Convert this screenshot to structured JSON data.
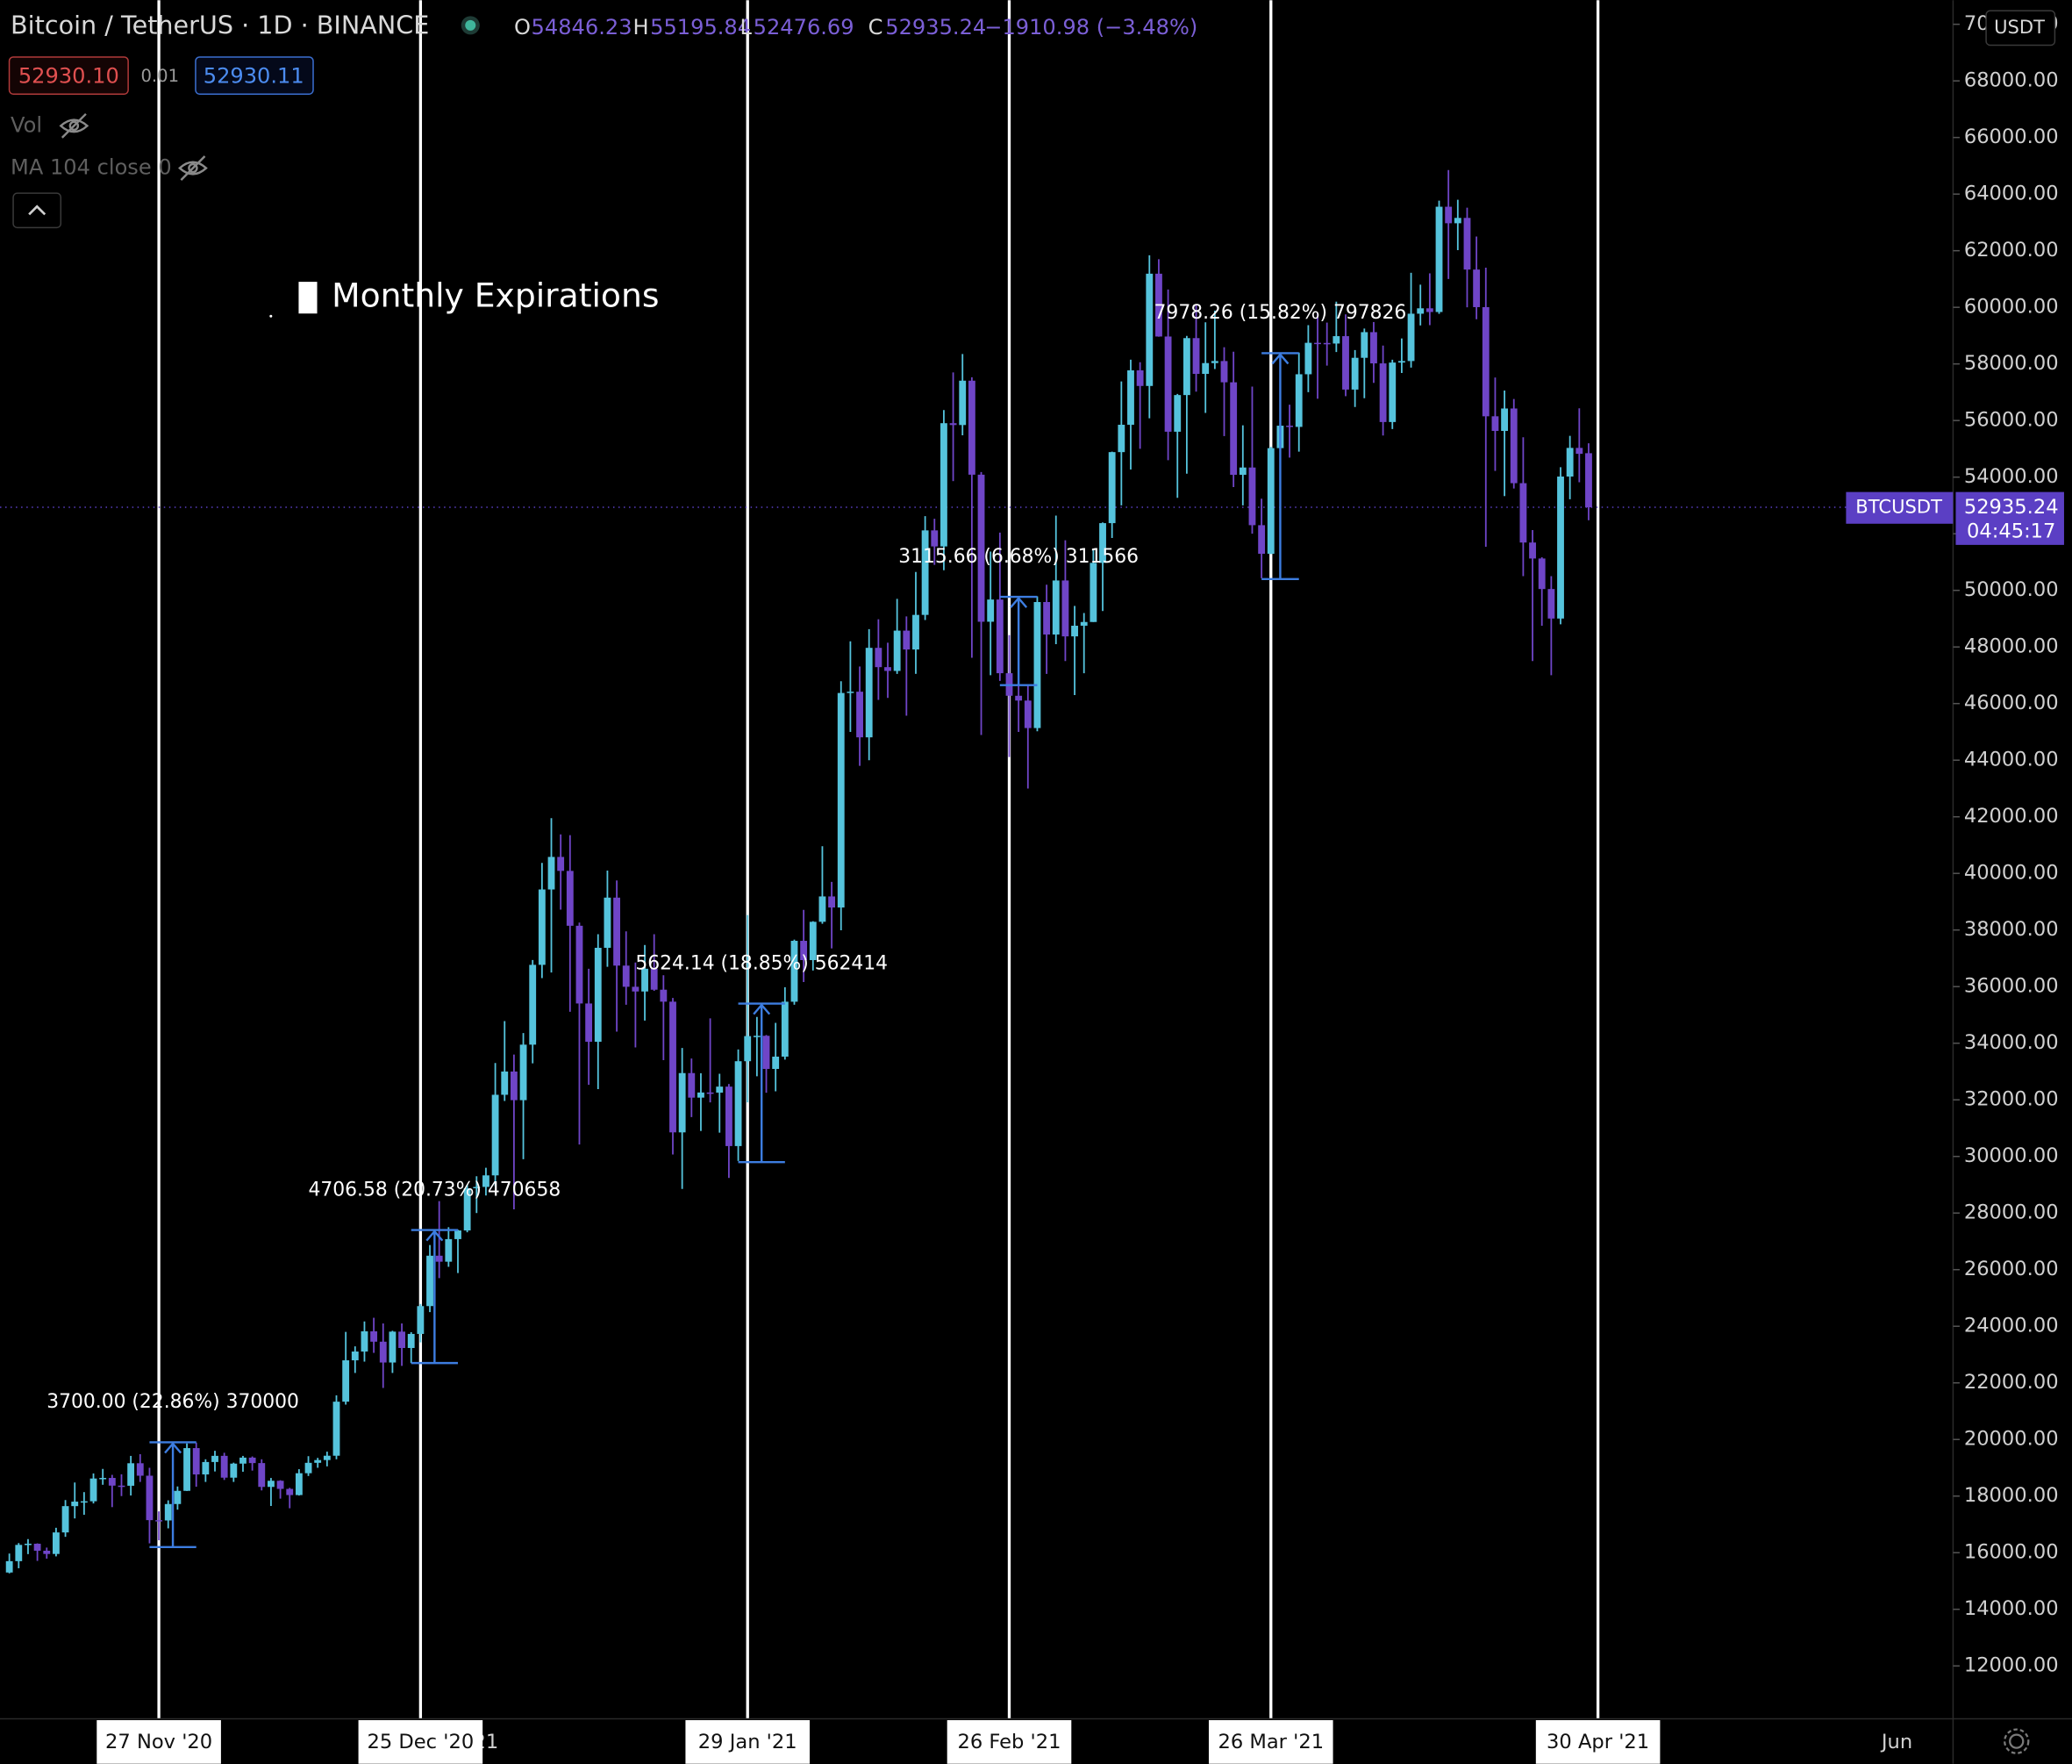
{
  "header": {
    "symbol": "Bitcoin / TetherUS · 1D · BINANCE",
    "ohlc": [
      {
        "label": "O",
        "value": 54846.23
      },
      {
        "label": "H",
        "value": 55195.84
      },
      {
        "label": "L",
        "value": 52476.69
      },
      {
        "label": "C",
        "value": 52935.24
      }
    ],
    "change": "−1910.98 (−3.48%)",
    "bid": "52930.10",
    "spread": "0.01",
    "ask": "52930.11",
    "indicators": [
      "Vol",
      "MA 104 close 0"
    ],
    "currency": "USDT"
  },
  "chart_data": {
    "type": "candlestick",
    "annotation_title": "Monthly Expirations",
    "up_color": "#55c3dc",
    "down_color": "#6f45c7",
    "x": [
      "2020-11-11",
      "2020-11-12",
      "2020-11-13",
      "2020-11-14",
      "2020-11-15",
      "2020-11-16",
      "2020-11-17",
      "2020-11-18",
      "2020-11-19",
      "2020-11-20",
      "2020-11-21",
      "2020-11-22",
      "2020-11-23",
      "2020-11-24",
      "2020-11-25",
      "2020-11-26",
      "2020-11-27",
      "2020-11-28",
      "2020-11-29",
      "2020-11-30",
      "2020-12-01",
      "2020-12-02",
      "2020-12-03",
      "2020-12-04",
      "2020-12-05",
      "2020-12-06",
      "2020-12-07",
      "2020-12-08",
      "2020-12-09",
      "2020-12-10",
      "2020-12-11",
      "2020-12-12",
      "2020-12-13",
      "2020-12-14",
      "2020-12-15",
      "2020-12-16",
      "2020-12-17",
      "2020-12-18",
      "2020-12-19",
      "2020-12-20",
      "2020-12-21",
      "2020-12-22",
      "2020-12-23",
      "2020-12-24",
      "2020-12-25",
      "2020-12-26",
      "2020-12-27",
      "2020-12-28",
      "2020-12-29",
      "2020-12-30",
      "2020-12-31",
      "2021-01-01",
      "2021-01-02",
      "2021-01-03",
      "2021-01-04",
      "2021-01-05",
      "2021-01-06",
      "2021-01-07",
      "2021-01-08",
      "2021-01-09",
      "2021-01-10",
      "2021-01-11",
      "2021-01-12",
      "2021-01-13",
      "2021-01-14",
      "2021-01-15",
      "2021-01-16",
      "2021-01-17",
      "2021-01-18",
      "2021-01-19",
      "2021-01-20",
      "2021-01-21",
      "2021-01-22",
      "2021-01-23",
      "2021-01-24",
      "2021-01-25",
      "2021-01-26",
      "2021-01-27",
      "2021-01-28",
      "2021-01-29",
      "2021-01-30",
      "2021-01-31",
      "2021-02-01",
      "2021-02-02",
      "2021-02-03",
      "2021-02-04",
      "2021-02-05",
      "2021-02-06",
      "2021-02-07",
      "2021-02-08",
      "2021-02-09",
      "2021-02-10",
      "2021-02-11",
      "2021-02-12",
      "2021-02-13",
      "2021-02-14",
      "2021-02-15",
      "2021-02-16",
      "2021-02-17",
      "2021-02-18",
      "2021-02-19",
      "2021-02-20",
      "2021-02-21",
      "2021-02-22",
      "2021-02-23",
      "2021-02-24",
      "2021-02-25",
      "2021-02-26",
      "2021-02-27",
      "2021-02-28",
      "2021-03-01",
      "2021-03-02",
      "2021-03-03",
      "2021-03-04",
      "2021-03-05",
      "2021-03-06",
      "2021-03-07",
      "2021-03-08",
      "2021-03-09",
      "2021-03-10",
      "2021-03-11",
      "2021-03-12",
      "2021-03-13",
      "2021-03-14",
      "2021-03-15",
      "2021-03-16",
      "2021-03-17",
      "2021-03-18",
      "2021-03-19",
      "2021-03-20",
      "2021-03-21",
      "2021-03-22",
      "2021-03-23",
      "2021-03-24",
      "2021-03-25",
      "2021-03-26",
      "2021-03-27",
      "2021-03-28",
      "2021-03-29",
      "2021-03-30",
      "2021-03-31",
      "2021-04-01",
      "2021-04-02",
      "2021-04-03",
      "2021-04-04",
      "2021-04-05",
      "2021-04-06",
      "2021-04-07",
      "2021-04-08",
      "2021-04-09",
      "2021-04-10",
      "2021-04-11",
      "2021-04-12",
      "2021-04-13",
      "2021-04-14",
      "2021-04-15",
      "2021-04-16",
      "2021-04-17",
      "2021-04-18",
      "2021-04-19",
      "2021-04-20",
      "2021-04-21",
      "2021-04-22",
      "2021-04-23",
      "2021-04-24",
      "2021-04-25",
      "2021-04-26",
      "2021-04-27",
      "2021-04-28",
      "2021-04-29"
    ],
    "open": [
      15300,
      15701,
      16276,
      16317,
      16070,
      15955,
      16716,
      17645,
      17804,
      17817,
      18621,
      18642,
      18370,
      18365,
      19160,
      18720,
      17150,
      17139,
      17719,
      18185,
      19695,
      18765,
      19204,
      19422,
      18651,
      19147,
      19359,
      19166,
      18324,
      18541,
      18254,
      18036,
      18808,
      19175,
      19273,
      19426,
      21335,
      22797,
      23107,
      23821,
      23455,
      22719,
      23810,
      23232,
      23729,
      24712,
      26493,
      26281,
      27079,
      27385,
      28875,
      28923,
      29331,
      32178,
      33000,
      31988,
      33949,
      36769,
      39432,
      40582,
      40088,
      38150,
      35404,
      34051,
      37371,
      39144,
      36742,
      35994,
      35828,
      36631,
      35891,
      35468,
      30850,
      32945,
      32078,
      32259,
      32254,
      32467,
      30366,
      33364,
      34252,
      34262,
      33092,
      33526,
      35466,
      37618,
      36937,
      38290,
      39186,
      38795,
      46374,
      46420,
      44807,
      47969,
      47287,
      47153,
      48577,
      47911,
      49133,
      52119,
      51552,
      55906,
      55841,
      57408,
      54087,
      48891,
      49676,
      47073,
      46276,
      46106,
      45135,
      49587,
      48440,
      50349,
      48374,
      48751,
      48882,
      50971,
      52375,
      54884,
      55851,
      57773,
      57221,
      61188,
      58968,
      55605,
      56900,
      58912,
      57648,
      58030,
      58102,
      57351,
      54083,
      54340,
      52303,
      51293,
      55025,
      55818,
      55775,
      57635,
      58746,
      58740,
      58720,
      58981,
      57094,
      58216,
      59123,
      58019,
      55947,
      58048,
      58102,
      59774,
      59965,
      59834,
      63554,
      62970,
      63159,
      61334,
      60006,
      56150,
      55633,
      56425,
      53787,
      51690,
      51125,
      50047,
      49004,
      54021,
      55033,
      54846.23
    ],
    "high": [
      15970,
      16340,
      16480,
      16330,
      16180,
      16880,
      17860,
      18480,
      18140,
      18800,
      18960,
      18750,
      18770,
      19420,
      19480,
      19000,
      17460,
      17850,
      18340,
      19860,
      19890,
      19300,
      19600,
      19530,
      19180,
      19420,
      19400,
      19300,
      18640,
      18560,
      18290,
      18950,
      19410,
      19350,
      19570,
      21560,
      23800,
      23290,
      24170,
      24300,
      24100,
      23840,
      24100,
      23790,
      24790,
      26870,
      28420,
      27500,
      27410,
      28990,
      29300,
      29600,
      33300,
      34780,
      33600,
      34360,
      36940,
      40370,
      41950,
      41380,
      41350,
      38260,
      36630,
      37850,
      40100,
      39750,
      37950,
      36850,
      37470,
      37850,
      36400,
      35600,
      33830,
      33460,
      32940,
      34880,
      32920,
      32560,
      33780,
      38530,
      34930,
      34290,
      34720,
      35980,
      37660,
      38710,
      38310,
      40960,
      39700,
      46790,
      48200,
      47310,
      48630,
      48980,
      48150,
      49700,
      49080,
      50650,
      52620,
      52530,
      56370,
      57700,
      58350,
      57530,
      54180,
      51370,
      52040,
      48420,
      48390,
      46640,
      49790,
      50200,
      52640,
      51770,
      49450,
      49200,
      51450,
      52400,
      54900,
      57380,
      58150,
      58060,
      61840,
      61700,
      60630,
      56940,
      58990,
      60100,
      59470,
      59880,
      58590,
      58430,
      55830,
      57200,
      53240,
      55070,
      56640,
      56560,
      58400,
      59370,
      59800,
      59460,
      60200,
      59750,
      58490,
      59250,
      59480,
      58650,
      58150,
      58900,
      61220,
      60800,
      61200,
      63770,
      64850,
      63800,
      63520,
      62500,
      61400,
      57520,
      57060,
      56760,
      55410,
      52130,
      51170,
      50500,
      54350,
      55460,
      56430,
      55195.84
    ],
    "low": [
      15270,
      15450,
      15950,
      15710,
      15790,
      15870,
      16560,
      17210,
      17340,
      17740,
      18400,
      17610,
      18000,
      18020,
      18500,
      16330,
      16440,
      16860,
      17520,
      18180,
      18330,
      18500,
      18870,
      18570,
      18500,
      18860,
      18900,
      18200,
      17650,
      17910,
      17570,
      18020,
      18710,
      19000,
      19050,
      19300,
      21230,
      22350,
      22750,
      23060,
      21820,
      22350,
      22600,
      22700,
      23430,
      24500,
      25700,
      26100,
      25880,
      27320,
      28000,
      28620,
      28950,
      31960,
      28130,
      29900,
      33290,
      36300,
      36500,
      38720,
      35110,
      30420,
      32530,
      32380,
      36700,
      34410,
      35360,
      33850,
      34800,
      35850,
      33400,
      30070,
      28850,
      31390,
      30900,
      31910,
      30840,
      29240,
      29840,
      31910,
      32830,
      32250,
      32300,
      33420,
      35360,
      36160,
      36570,
      38220,
      37350,
      37990,
      45000,
      43800,
      44000,
      46130,
      46200,
      47050,
      45570,
      47050,
      48950,
      50900,
      50710,
      53860,
      55480,
      47620,
      44890,
      47000,
      46800,
      44110,
      45000,
      43000,
      45020,
      47050,
      48100,
      47500,
      46300,
      47070,
      48880,
      49270,
      51850,
      53000,
      54270,
      55000,
      56080,
      58960,
      54600,
      53270,
      54120,
      57020,
      56270,
      57820,
      55450,
      53650,
      53000,
      52000,
      50430,
      51280,
      53950,
      54690,
      54900,
      57000,
      56770,
      57940,
      58420,
      56860,
      56480,
      56790,
      57330,
      55470,
      55700,
      57680,
      57870,
      59360,
      59370,
      59770,
      61000,
      62020,
      60000,
      59580,
      51540,
      54220,
      53330,
      53600,
      50500,
      47500,
      48750,
      47000,
      48800,
      53220,
      53820,
      52476.69
    ],
    "close": [
      15701,
      16276,
      16317,
      16070,
      15955,
      16716,
      17645,
      17804,
      17817,
      18621,
      18642,
      18370,
      18365,
      19160,
      18720,
      17150,
      17139,
      17719,
      18185,
      19695,
      18765,
      19204,
      19422,
      18651,
      19147,
      19359,
      19166,
      18324,
      18541,
      18254,
      18036,
      18808,
      19175,
      19273,
      19426,
      21335,
      22797,
      23107,
      23821,
      23455,
      22719,
      23810,
      23232,
      23729,
      24712,
      26493,
      26281,
      27079,
      27385,
      28875,
      28923,
      29331,
      32178,
      33000,
      31988,
      33949,
      36769,
      39432,
      40582,
      40088,
      38150,
      35404,
      34051,
      37371,
      39144,
      36742,
      35994,
      35828,
      36631,
      35891,
      35468,
      30850,
      32945,
      32078,
      32259,
      32254,
      32467,
      30366,
      33364,
      34252,
      34262,
      33092,
      33526,
      35466,
      37618,
      36937,
      38290,
      39186,
      38795,
      46374,
      46420,
      44807,
      47969,
      47287,
      47153,
      48577,
      47911,
      49133,
      52119,
      51552,
      55906,
      55841,
      57408,
      54087,
      48891,
      49676,
      47073,
      46276,
      46106,
      45135,
      49587,
      48440,
      50349,
      48374,
      48751,
      48882,
      50971,
      52375,
      54884,
      55851,
      57773,
      57221,
      61188,
      58968,
      55605,
      56900,
      58912,
      57648,
      58030,
      58102,
      57351,
      54083,
      54340,
      52303,
      51293,
      55025,
      55818,
      55775,
      57635,
      58746,
      58740,
      58720,
      58981,
      57094,
      58216,
      59123,
      58019,
      55947,
      58048,
      58102,
      59774,
      59965,
      59834,
      63554,
      62970,
      63159,
      61334,
      60006,
      56150,
      55633,
      56425,
      53787,
      51690,
      51125,
      50047,
      49004,
      54021,
      55033,
      54824,
      52935.24
    ],
    "xlim": [
      "2020-11-10",
      "2021-06-07"
    ],
    "ylim": [
      10130,
      70850
    ],
    "yticks": [
      {
        "value": 12000,
        "label": "12000.00"
      },
      {
        "value": 14000,
        "label": "14000.00"
      },
      {
        "value": 16000,
        "label": "16000.00"
      },
      {
        "value": 18000,
        "label": "18000.00"
      },
      {
        "value": 20000,
        "label": "20000.00"
      },
      {
        "value": 22000,
        "label": "22000.00"
      },
      {
        "value": 24000,
        "label": "24000.00"
      },
      {
        "value": 26000,
        "label": "26000.00"
      },
      {
        "value": 28000,
        "label": "28000.00"
      },
      {
        "value": 30000,
        "label": "30000.00"
      },
      {
        "value": 32000,
        "label": "32000.00"
      },
      {
        "value": 34000,
        "label": "34000.00"
      },
      {
        "value": 36000,
        "label": "36000.00"
      },
      {
        "value": 38000,
        "label": "38000.00"
      },
      {
        "value": 40000,
        "label": "40000.00"
      },
      {
        "value": 42000,
        "label": "42000.00"
      },
      {
        "value": 44000,
        "label": "44000.00"
      },
      {
        "value": 46000,
        "label": "46000.00"
      },
      {
        "value": 48000,
        "label": "48000.00"
      },
      {
        "value": 50000,
        "label": "50000.00"
      },
      {
        "value": 52000,
        "label": "52000.00"
      },
      {
        "value": 54000,
        "label": "54000.00"
      },
      {
        "value": 56000,
        "label": "56000.00"
      },
      {
        "value": 58000,
        "label": "58000.00"
      },
      {
        "value": 60000,
        "label": "60000.00"
      },
      {
        "value": 62000,
        "label": "62000.00"
      },
      {
        "value": 64000,
        "label": "64000.00"
      },
      {
        "value": 66000,
        "label": "66000.00"
      },
      {
        "value": 68000,
        "label": "68000.00"
      },
      {
        "value": 70000,
        "label": "70000.00"
      }
    ],
    "xticks": [
      {
        "value": "2021-01-01",
        "label": "21"
      },
      {
        "value": "2021-04-01",
        "label": "r"
      },
      {
        "value": "2021-06-01",
        "label": "Jun"
      }
    ],
    "expirations": [
      {
        "value": "2020-11-27",
        "label": "27 Nov '20"
      },
      {
        "value": "2020-12-25",
        "label": "25 Dec '20"
      },
      {
        "value": "2021-01-29",
        "label": "29 Jan '21"
      },
      {
        "value": "2021-02-26",
        "label": "26 Feb '21"
      },
      {
        "value": "2021-03-26",
        "label": "26 Mar '21"
      },
      {
        "value": "2021-04-30",
        "label": "30 Apr '21"
      }
    ],
    "measurements": [
      {
        "label": "3700.00 (22.86%) 370000",
        "x": [
          "2020-11-26",
          "2020-12-01"
        ],
        "y": [
          16200,
          19900
        ]
      },
      {
        "label": "4706.58 (20.73%) 470658",
        "x": [
          "2020-12-24",
          "2020-12-29"
        ],
        "y": [
          22700,
          27400
        ]
      },
      {
        "label": "5624.14 (18.85%) 562414",
        "x": [
          "2021-01-28",
          "2021-02-02"
        ],
        "y": [
          29800,
          35400
        ]
      },
      {
        "label": "3115.66 (6.68%) 311566",
        "x": [
          "2021-02-25",
          "2021-03-01"
        ],
        "y": [
          46650,
          49770
        ]
      },
      {
        "label": "7978.26 (15.82%) 797826",
        "x": [
          "2021-03-25",
          "2021-03-29"
        ],
        "y": [
          50400,
          58380
        ]
      }
    ],
    "last_price": {
      "symbol": "BTCUSDT",
      "value": 52935.24,
      "label": "52935.24",
      "countdown": "04:45:17",
      "color": "#5b3fc4"
    }
  }
}
